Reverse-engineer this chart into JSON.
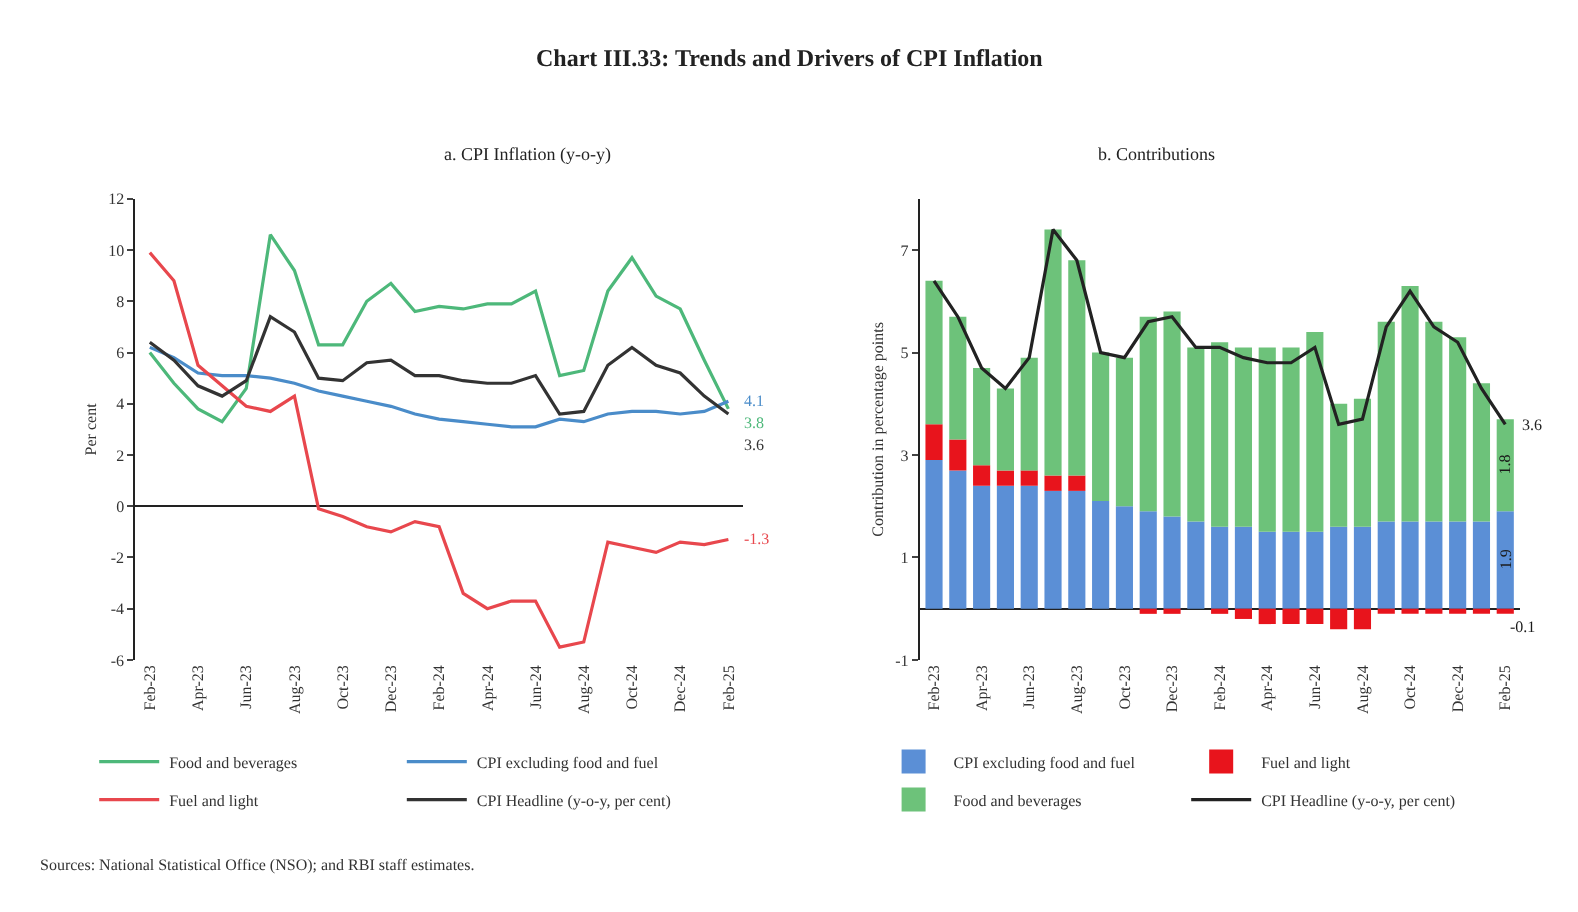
{
  "chart_data": [
    {
      "type": "line",
      "title": "Chart III.33: Trends and Drivers of CPI Inflation",
      "subtitle": "a. CPI Inflation (y-o-y)",
      "ylabel": "Per cent",
      "categories": [
        "Feb-23",
        null,
        "Apr-23",
        null,
        "Jun-23",
        null,
        "Aug-23",
        null,
        "Oct-23",
        null,
        "Dec-23",
        null,
        "Feb-24",
        null,
        "Apr-24",
        null,
        "Jun-24",
        null,
        "Aug-24",
        null,
        "Oct-24",
        null,
        "Dec-24",
        null,
        "Feb-25"
      ],
      "ylim": [
        -6,
        12
      ],
      "yticks": [
        -6,
        -4,
        -2,
        0,
        2,
        4,
        6,
        8,
        10,
        12
      ],
      "legend": "bottom",
      "marker": "none",
      "line_style": "solid",
      "annotations": [
        "Sources: National Statistical Office (NSO); and RBI staff estimates."
      ],
      "series": [
        {
          "name": "Food and beverages",
          "color": "#4db87a",
          "values": [
            6.0,
            4.8,
            3.8,
            3.3,
            4.6,
            10.6,
            9.2,
            6.3,
            6.3,
            8.0,
            8.7,
            7.6,
            7.8,
            7.7,
            7.9,
            7.9,
            8.4,
            5.1,
            5.3,
            8.4,
            9.7,
            8.2,
            7.7,
            5.7,
            3.8
          ],
          "value_labels": [
            null,
            null,
            null,
            null,
            null,
            null,
            null,
            null,
            null,
            null,
            null,
            null,
            null,
            null,
            null,
            null,
            null,
            null,
            null,
            null,
            null,
            null,
            null,
            null,
            "3.8"
          ]
        },
        {
          "name": "CPI excluding food and fuel",
          "color": "#4a8cc9",
          "values": [
            6.2,
            5.8,
            5.2,
            5.1,
            5.1,
            5.0,
            4.8,
            4.5,
            4.3,
            4.1,
            3.9,
            3.6,
            3.4,
            3.3,
            3.2,
            3.1,
            3.1,
            3.4,
            3.3,
            3.6,
            3.7,
            3.7,
            3.6,
            3.7,
            4.1
          ],
          "value_labels": [
            null,
            null,
            null,
            null,
            null,
            null,
            null,
            null,
            null,
            null,
            null,
            null,
            null,
            null,
            null,
            null,
            null,
            null,
            null,
            null,
            null,
            null,
            null,
            null,
            "4.1"
          ]
        },
        {
          "name": "Fuel and light",
          "color": "#e8474d",
          "values": [
            9.9,
            8.8,
            5.5,
            4.7,
            3.9,
            3.7,
            4.3,
            -0.1,
            -0.4,
            -0.8,
            -1.0,
            -0.6,
            -0.8,
            -3.4,
            -4.0,
            -3.7,
            -3.7,
            -5.5,
            -5.3,
            -1.4,
            -1.6,
            -1.8,
            -1.4,
            -1.5,
            -1.3
          ],
          "value_labels": [
            null,
            null,
            null,
            null,
            null,
            null,
            null,
            null,
            null,
            null,
            null,
            null,
            null,
            null,
            null,
            null,
            null,
            null,
            null,
            null,
            null,
            null,
            null,
            null,
            "-1.3"
          ]
        },
        {
          "name": "CPI Headline (y-o-y, per cent)",
          "color": "#333333",
          "values": [
            6.4,
            5.7,
            4.7,
            4.3,
            4.9,
            7.4,
            6.8,
            5.0,
            4.9,
            5.6,
            5.7,
            5.1,
            5.1,
            4.9,
            4.8,
            4.8,
            5.1,
            3.6,
            3.7,
            5.5,
            6.2,
            5.5,
            5.2,
            4.3,
            3.6
          ],
          "value_labels": [
            null,
            null,
            null,
            null,
            null,
            null,
            null,
            null,
            null,
            null,
            null,
            null,
            null,
            null,
            null,
            null,
            null,
            null,
            null,
            null,
            null,
            null,
            null,
            null,
            "3.6"
          ]
        }
      ]
    },
    {
      "type": "bar",
      "title": "b. Contributions",
      "ylabel": "Contribution in percentage points",
      "stacked": true,
      "categories": [
        "Feb-23",
        null,
        "Apr-23",
        null,
        "Jun-23",
        null,
        "Aug-23",
        null,
        "Oct-23",
        null,
        "Dec-23",
        null,
        "Feb-24",
        null,
        "Apr-24",
        null,
        "Jun-24",
        null,
        "Aug-24",
        null,
        "Oct-24",
        null,
        "Dec-24",
        null,
        "Feb-25"
      ],
      "ylim": [
        -1,
        8
      ],
      "yticks": [
        -1,
        1,
        3,
        5,
        7
      ],
      "legend": "bottom",
      "series": [
        {
          "name": "CPI excluding food and fuel",
          "color": "#5b8fd6",
          "values": [
            2.9,
            2.7,
            2.4,
            2.4,
            2.4,
            2.3,
            2.3,
            2.1,
            2.0,
            1.9,
            1.8,
            1.7,
            1.6,
            1.6,
            1.5,
            1.5,
            1.5,
            1.6,
            1.6,
            1.7,
            1.7,
            1.7,
            1.7,
            1.7,
            1.9
          ],
          "value_labels": [
            null,
            null,
            null,
            null,
            null,
            null,
            null,
            null,
            null,
            null,
            null,
            null,
            null,
            null,
            null,
            null,
            null,
            null,
            null,
            null,
            null,
            null,
            null,
            null,
            "1.9"
          ]
        },
        {
          "name": "Fuel and light",
          "color": "#e8141c",
          "values": [
            0.7,
            0.6,
            0.4,
            0.3,
            0.3,
            0.3,
            0.3,
            0.0,
            0.0,
            -0.1,
            -0.1,
            0.0,
            -0.1,
            -0.2,
            -0.3,
            -0.3,
            -0.3,
            -0.4,
            -0.4,
            -0.1,
            -0.1,
            -0.1,
            -0.1,
            -0.1,
            -0.1
          ],
          "value_labels": [
            null,
            null,
            null,
            null,
            null,
            null,
            null,
            null,
            null,
            null,
            null,
            null,
            null,
            null,
            null,
            null,
            null,
            null,
            null,
            null,
            null,
            null,
            null,
            null,
            "-0.1"
          ]
        },
        {
          "name": "Food and beverages",
          "color": "#6dc27a",
          "values": [
            2.8,
            2.4,
            1.9,
            1.6,
            2.2,
            4.8,
            4.2,
            2.9,
            2.9,
            3.8,
            4.0,
            3.4,
            3.6,
            3.5,
            3.6,
            3.6,
            3.9,
            2.4,
            2.5,
            3.9,
            4.6,
            3.9,
            3.6,
            2.7,
            1.8
          ],
          "value_labels": [
            null,
            null,
            null,
            null,
            null,
            null,
            null,
            null,
            null,
            null,
            null,
            null,
            null,
            null,
            null,
            null,
            null,
            null,
            null,
            null,
            null,
            null,
            null,
            null,
            "1.8"
          ]
        },
        {
          "name": "CPI Headline (y-o-y, per cent)",
          "type": "line",
          "color": "#222222",
          "values": [
            6.4,
            5.7,
            4.7,
            4.3,
            4.9,
            7.4,
            6.8,
            5.0,
            4.9,
            5.6,
            5.7,
            5.1,
            5.1,
            4.9,
            4.8,
            4.8,
            5.1,
            3.6,
            3.7,
            5.5,
            6.2,
            5.5,
            5.2,
            4.3,
            3.6
          ],
          "value_labels": [
            null,
            null,
            null,
            null,
            null,
            null,
            null,
            null,
            null,
            null,
            null,
            null,
            null,
            null,
            null,
            null,
            null,
            null,
            null,
            null,
            null,
            null,
            null,
            null,
            "3.6"
          ]
        }
      ]
    }
  ]
}
